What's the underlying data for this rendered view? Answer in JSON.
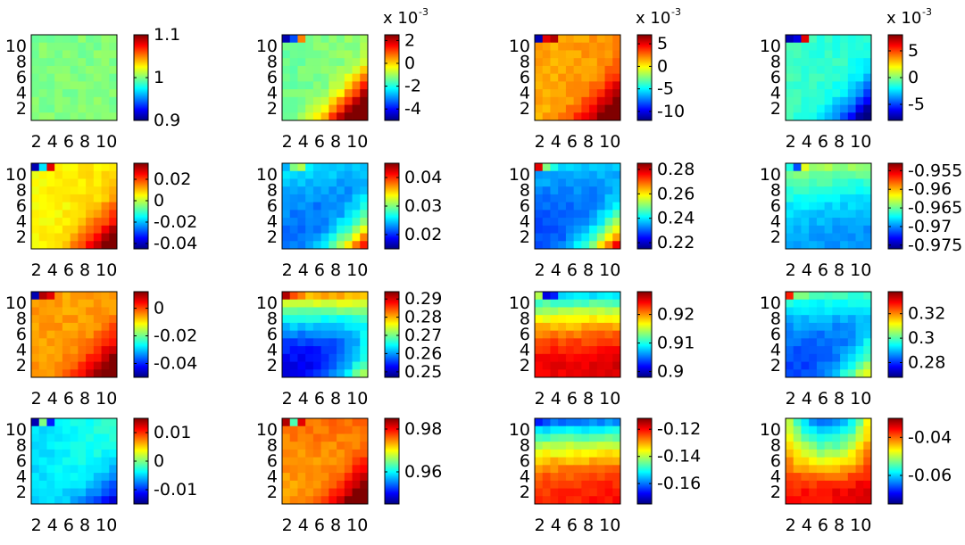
{
  "chart_data": {
    "type": "heatmap",
    "grid_size": 11,
    "layout": {
      "rows": 4,
      "cols": 4
    },
    "colormap": "jet",
    "x_tick_values": [
      2,
      4,
      6,
      8,
      10
    ],
    "y_tick_values": [
      2,
      4,
      6,
      8,
      10
    ],
    "x_tick_text": "2 4 6 8 10",
    "panels": [
      {
        "clim": [
          0.9,
          1.1
        ],
        "colorbar_ticks": [
          "1.1",
          "1",
          "0.9"
        ],
        "colorbar_tick_values": [
          1.1,
          1.0,
          0.9
        ],
        "exponent": "",
        "pattern": {
          "base": 0.5,
          "diag": 0.0,
          "top": 0.0,
          "corner": 0.0,
          "corner_values": []
        }
      },
      {
        "clim": [
          -0.005,
          0.0025
        ],
        "colorbar_ticks": [
          "2",
          "0",
          "-2",
          "-4"
        ],
        "colorbar_tick_values": [
          0.002,
          0.0,
          -0.002,
          -0.004
        ],
        "exponent": "-3",
        "pattern": {
          "base": 0.5,
          "diag": 0.1,
          "top": 0.0,
          "corner": 0.4,
          "corner_values": [
            0.05,
            0.2,
            0.75
          ]
        }
      },
      {
        "clim": [
          -0.012,
          0.007
        ],
        "colorbar_ticks": [
          "5",
          "0",
          "-5",
          "-10"
        ],
        "colorbar_tick_values": [
          0.005,
          0.0,
          -0.005,
          -0.01
        ],
        "exponent": "-3",
        "pattern": {
          "base": 0.72,
          "diag": 0.06,
          "top": 0.0,
          "corner": 0.2,
          "corner_values": [
            0.05,
            0.9,
            0.95
          ]
        }
      },
      {
        "clim": [
          -0.008,
          0.008
        ],
        "colorbar_ticks": [
          "5",
          "0",
          "-5"
        ],
        "colorbar_tick_values": [
          0.005,
          0.0,
          -0.005
        ],
        "exponent": "-3",
        "pattern": {
          "base": 0.42,
          "diag": -0.06,
          "top": 0.0,
          "corner": -0.2,
          "corner_values": [
            0.05,
            0.1,
            0.9
          ]
        }
      },
      {
        "clim": [
          -0.045,
          0.035
        ],
        "colorbar_ticks": [
          "0.02",
          "0",
          "-0.02",
          "-0.04"
        ],
        "colorbar_tick_values": [
          0.02,
          0.0,
          -0.02,
          -0.04
        ],
        "exponent": "",
        "pattern": {
          "base": 0.64,
          "diag": 0.08,
          "top": 0.0,
          "corner": 0.2,
          "corner_values": [
            0.05,
            0.35,
            0.9
          ]
        }
      },
      {
        "clim": [
          0.015,
          0.045
        ],
        "colorbar_ticks": [
          "0.04",
          "0.03",
          "0.02"
        ],
        "colorbar_tick_values": [
          0.04,
          0.03,
          0.02
        ],
        "exponent": "",
        "pattern": {
          "base": 0.22,
          "diag": -0.08,
          "top": 0.12,
          "corner": 0.3,
          "corner_values": [
            0.3,
            0.5,
            0.55
          ]
        }
      },
      {
        "clim": [
          0.215,
          0.285
        ],
        "colorbar_ticks": [
          "0.28",
          "0.26",
          "0.24",
          "0.22"
        ],
        "colorbar_tick_values": [
          0.28,
          0.26,
          0.24,
          0.22
        ],
        "exponent": "",
        "pattern": {
          "base": 0.2,
          "diag": 0.0,
          "top": 0.12,
          "corner": 0.3,
          "corner_values": [
            0.9,
            0.5,
            0.4
          ]
        }
      },
      {
        "clim": [
          -0.976,
          -0.953
        ],
        "colorbar_ticks": [
          "-0.955",
          "-0.96",
          "-0.965",
          "-0.97",
          "-0.975"
        ],
        "colorbar_tick_values": [
          -0.955,
          -0.96,
          -0.965,
          -0.97,
          -0.975
        ],
        "exponent": "",
        "pattern": {
          "base": 0.28,
          "diag": -0.1,
          "top": 0.25,
          "corner": 0.0,
          "corner_values": [
            0.4,
            0.2,
            0.6
          ]
        }
      },
      {
        "clim": [
          -0.05,
          0.012
        ],
        "colorbar_ticks": [
          "0",
          "-0.02",
          "-0.04"
        ],
        "colorbar_tick_values": [
          0.0,
          -0.02,
          -0.04
        ],
        "exponent": "",
        "pattern": {
          "base": 0.72,
          "diag": 0.0,
          "top": 0.0,
          "corner": 0.2,
          "corner_values": [
            0.05,
            0.95,
            0.9
          ]
        }
      },
      {
        "clim": [
          0.247,
          0.294
        ],
        "colorbar_ticks": [
          "0.29",
          "0.28",
          "0.27",
          "0.26",
          "0.25"
        ],
        "colorbar_tick_values": [
          0.29,
          0.28,
          0.27,
          0.26,
          0.25
        ],
        "exponent": "",
        "pattern": {
          "base": 0.1,
          "diag": 0.0,
          "top": 0.6,
          "corner": 0.2,
          "corner_values": [
            0.95,
            0.8,
            0.75
          ]
        }
      },
      {
        "clim": [
          0.898,
          0.928
        ],
        "colorbar_ticks": [
          "0.92",
          "0.91",
          "0.9"
        ],
        "colorbar_tick_values": [
          0.92,
          0.91,
          0.9
        ],
        "exponent": "",
        "pattern": {
          "base": 0.9,
          "diag": 0.06,
          "top": -0.55,
          "corner": 0.0,
          "corner_values": [
            0.55,
            0.1,
            0.15
          ]
        }
      },
      {
        "clim": [
          0.268,
          0.338
        ],
        "colorbar_ticks": [
          "0.32",
          "0.3",
          "0.28"
        ],
        "colorbar_tick_values": [
          0.32,
          0.3,
          0.28
        ],
        "exponent": "",
        "pattern": {
          "base": 0.18,
          "diag": -0.05,
          "top": 0.25,
          "corner": 0.2,
          "corner_values": [
            0.85,
            0.5,
            0.5
          ]
        }
      },
      {
        "clim": [
          -0.015,
          0.015
        ],
        "colorbar_ticks": [
          "0.01",
          "0",
          "-0.01"
        ],
        "colorbar_tick_values": [
          0.01,
          0.0,
          -0.01
        ],
        "exponent": "",
        "pattern": {
          "base": 0.38,
          "diag": 0.2,
          "top": 0.0,
          "corner": -0.15,
          "corner_values": [
            0.05,
            0.5,
            0.15
          ]
        }
      },
      {
        "clim": [
          0.945,
          0.985
        ],
        "colorbar_ticks": [
          "0.98",
          "0.96"
        ],
        "colorbar_tick_values": [
          0.98,
          0.96
        ],
        "exponent": "",
        "pattern": {
          "base": 0.72,
          "diag": 0.0,
          "top": 0.05,
          "corner": 0.2,
          "corner_values": [
            0.95,
            0.45,
            0.9
          ]
        }
      },
      {
        "clim": [
          -0.175,
          -0.112
        ],
        "colorbar_ticks": [
          "-0.12",
          "-0.14",
          "-0.16"
        ],
        "colorbar_tick_values": [
          -0.12,
          -0.14,
          -0.16
        ],
        "exponent": "",
        "pattern": {
          "base": 0.85,
          "diag": 0.08,
          "top": -0.6,
          "corner": 0.0,
          "corner_values": [
            0.15,
            0.2,
            0.25
          ]
        }
      },
      {
        "clim": [
          -0.075,
          -0.03
        ],
        "colorbar_ticks": [
          "-0.04",
          "-0.06"
        ],
        "colorbar_tick_values": [
          -0.04,
          -0.06
        ],
        "exponent": "",
        "pattern": {
          "base": 0.7,
          "diag": 0.0,
          "top": -0.5,
          "corner": 0.0,
          "corner_values": [],
          "bowl": true
        }
      }
    ]
  }
}
